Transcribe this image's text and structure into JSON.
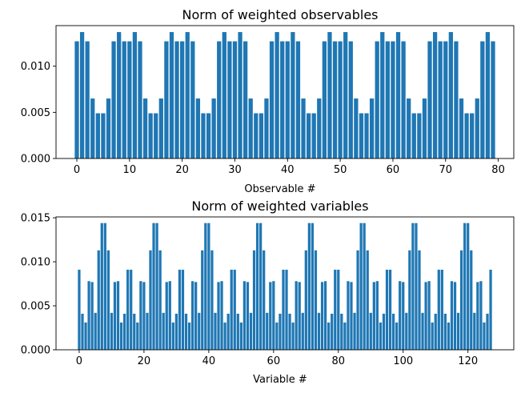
{
  "chart_data": [
    {
      "type": "bar",
      "title": "Norm of weighted observables",
      "xlabel": "Observable #",
      "ylabel": "",
      "color": "#1f77b4",
      "xlim": [
        -3.95,
        82.95
      ],
      "ylim": [
        0,
        0.0144
      ],
      "xticks": [
        0,
        10,
        20,
        30,
        40,
        50,
        60,
        70,
        80
      ],
      "xtick_labels": [
        "0",
        "10",
        "20",
        "30",
        "40",
        "50",
        "60",
        "70",
        "80"
      ],
      "yticks": [
        0,
        0.005,
        0.01
      ],
      "ytick_labels": [
        "0.000",
        "0.005",
        "0.010"
      ],
      "x": [
        0,
        1,
        2,
        3,
        4,
        5,
        6,
        7,
        8,
        9,
        10,
        11,
        12,
        13,
        14,
        15,
        16,
        17,
        18,
        19,
        20,
        21,
        22,
        23,
        24,
        25,
        26,
        27,
        28,
        29,
        30,
        31,
        32,
        33,
        34,
        35,
        36,
        37,
        38,
        39,
        40,
        41,
        42,
        43,
        44,
        45,
        46,
        47,
        48,
        49,
        50,
        51,
        52,
        53,
        54,
        55,
        56,
        57,
        58,
        59,
        60,
        61,
        62,
        63,
        64,
        65,
        66,
        67,
        68,
        69,
        70,
        71,
        72,
        73,
        74,
        75,
        76,
        77,
        78,
        79
      ],
      "values": [
        0.0127,
        0.0137,
        0.0127,
        0.0065,
        0.0049,
        0.0049,
        0.0065,
        0.0127,
        0.0137,
        0.0127,
        0.0127,
        0.0137,
        0.0127,
        0.0065,
        0.0049,
        0.0049,
        0.0065,
        0.0127,
        0.0137,
        0.0127,
        0.0127,
        0.0137,
        0.0127,
        0.0065,
        0.0049,
        0.0049,
        0.0065,
        0.0127,
        0.0137,
        0.0127,
        0.0127,
        0.0137,
        0.0127,
        0.0065,
        0.0049,
        0.0049,
        0.0065,
        0.0127,
        0.0137,
        0.0127,
        0.0127,
        0.0137,
        0.0127,
        0.0065,
        0.0049,
        0.0049,
        0.0065,
        0.0127,
        0.0137,
        0.0127,
        0.0127,
        0.0137,
        0.0127,
        0.0065,
        0.0049,
        0.0049,
        0.0065,
        0.0127,
        0.0137,
        0.0127,
        0.0127,
        0.0137,
        0.0127,
        0.0065,
        0.0049,
        0.0049,
        0.0065,
        0.0127,
        0.0137,
        0.0127,
        0.0127,
        0.0137,
        0.0127,
        0.0065,
        0.0049,
        0.0049,
        0.0065,
        0.0127,
        0.0137,
        0.0127
      ]
    },
    {
      "type": "bar",
      "title": "Norm of weighted variables",
      "xlabel": "Variable #",
      "ylabel": "",
      "color": "#1f77b4",
      "xlim": [
        -7.15,
        134.15
      ],
      "ylim": [
        0,
        0.0151
      ],
      "xticks": [
        0,
        20,
        40,
        60,
        80,
        100,
        120
      ],
      "xtick_labels": [
        "0",
        "20",
        "40",
        "60",
        "80",
        "100",
        "120"
      ],
      "yticks": [
        0,
        0.005,
        0.01,
        0.015
      ],
      "ytick_labels": [
        "0.000",
        "0.005",
        "0.010",
        "0.015"
      ],
      "x": [
        0,
        1,
        2,
        3,
        4,
        5,
        6,
        7,
        8,
        9,
        10,
        11,
        12,
        13,
        14,
        15,
        16,
        17,
        18,
        19,
        20,
        21,
        22,
        23,
        24,
        25,
        26,
        27,
        28,
        29,
        30,
        31,
        32,
        33,
        34,
        35,
        36,
        37,
        38,
        39,
        40,
        41,
        42,
        43,
        44,
        45,
        46,
        47,
        48,
        49,
        50,
        51,
        52,
        53,
        54,
        55,
        56,
        57,
        58,
        59,
        60,
        61,
        62,
        63,
        64,
        65,
        66,
        67,
        68,
        69,
        70,
        71,
        72,
        73,
        74,
        75,
        76,
        77,
        78,
        79,
        80,
        81,
        82,
        83,
        84,
        85,
        86,
        87,
        88,
        89,
        90,
        91,
        92,
        93,
        94,
        95,
        96,
        97,
        98,
        99,
        100,
        101,
        102,
        103,
        104,
        105,
        106,
        107,
        108,
        109,
        110,
        111,
        112,
        113,
        114,
        115,
        116,
        117,
        118,
        119,
        120,
        121,
        122,
        123,
        124,
        125,
        126,
        127
      ],
      "values": [
        0.0091,
        0.0041,
        0.0031,
        0.0078,
        0.0077,
        0.0042,
        0.0113,
        0.0144,
        0.0144,
        0.0113,
        0.0042,
        0.0077,
        0.0078,
        0.0031,
        0.0041,
        0.0091,
        0.0091,
        0.0041,
        0.0031,
        0.0078,
        0.0077,
        0.0042,
        0.0113,
        0.0144,
        0.0144,
        0.0113,
        0.0042,
        0.0077,
        0.0078,
        0.0031,
        0.0041,
        0.0091,
        0.0091,
        0.0041,
        0.0031,
        0.0078,
        0.0077,
        0.0042,
        0.0113,
        0.0144,
        0.0144,
        0.0113,
        0.0042,
        0.0077,
        0.0078,
        0.0031,
        0.0041,
        0.0091,
        0.0091,
        0.0041,
        0.0031,
        0.0078,
        0.0077,
        0.0042,
        0.0113,
        0.0144,
        0.0144,
        0.0113,
        0.0042,
        0.0077,
        0.0078,
        0.0031,
        0.0041,
        0.0091,
        0.0091,
        0.0041,
        0.0031,
        0.0078,
        0.0077,
        0.0042,
        0.0113,
        0.0144,
        0.0144,
        0.0113,
        0.0042,
        0.0077,
        0.0078,
        0.0031,
        0.0041,
        0.0091,
        0.0091,
        0.0041,
        0.0031,
        0.0078,
        0.0077,
        0.0042,
        0.0113,
        0.0144,
        0.0144,
        0.0113,
        0.0042,
        0.0077,
        0.0078,
        0.0031,
        0.0041,
        0.0091,
        0.0091,
        0.0041,
        0.0031,
        0.0078,
        0.0077,
        0.0042,
        0.0113,
        0.0144,
        0.0144,
        0.0113,
        0.0042,
        0.0077,
        0.0078,
        0.0031,
        0.0041,
        0.0091,
        0.0091,
        0.0041,
        0.0031,
        0.0078,
        0.0077,
        0.0042,
        0.0113,
        0.0144,
        0.0144,
        0.0113,
        0.0042,
        0.0077,
        0.0078,
        0.0031,
        0.0041,
        0.0091
      ]
    }
  ]
}
